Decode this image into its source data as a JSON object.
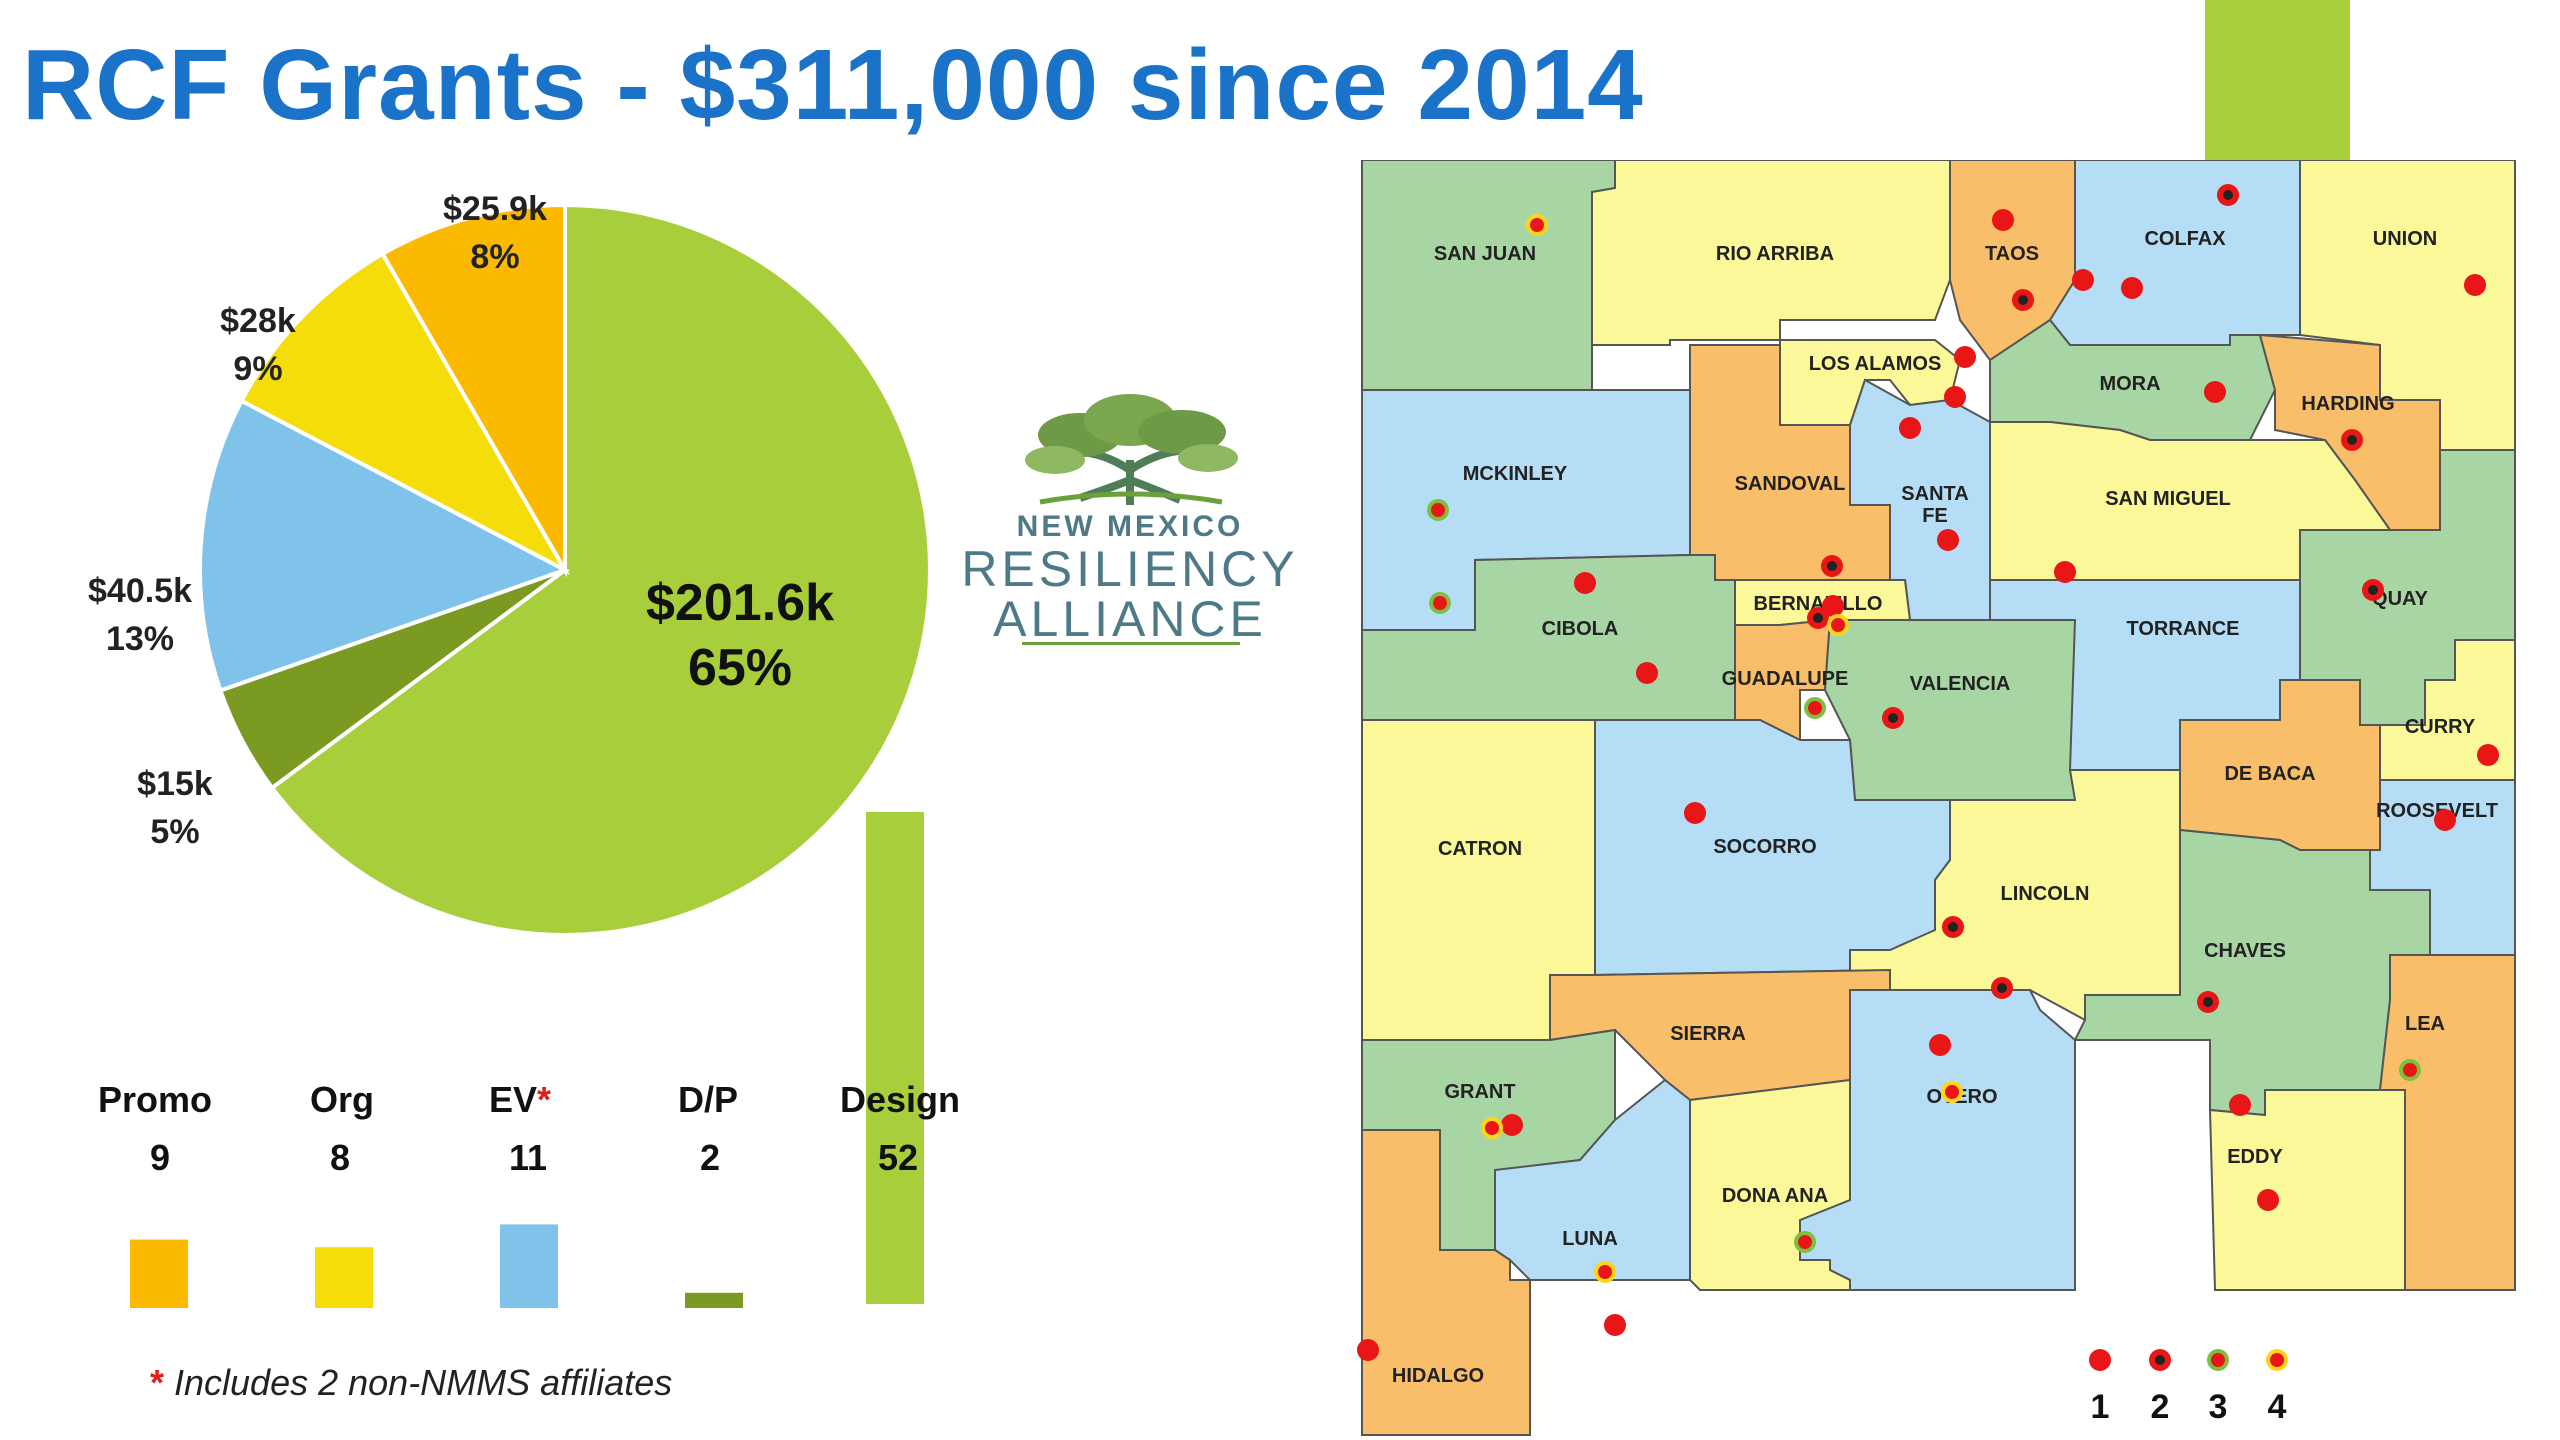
{
  "title": "RCF Grants - $311,000 since 2014",
  "colors": {
    "promo": "#fbb900",
    "org": "#f5dd0a",
    "ev": "#7fc3ea",
    "dp": "#7a9a22",
    "design": "#a8cf3b",
    "map_green": "#a7d6a4",
    "map_yellow": "#fbf89a",
    "map_orange": "#f9be69",
    "map_blue": "#b5def6",
    "dot_red": "#e81616",
    "dot_ring_yellow": "#ffd51a",
    "dot_ring_green": "#7fbf3f"
  },
  "chart_data": {
    "type": "pie",
    "slices": [
      {
        "value": "$201.6k",
        "pct": "65%",
        "amount": 201.6
      },
      {
        "value": "$15k",
        "pct": "5%",
        "amount": 15
      },
      {
        "value": "$40.5k",
        "pct": "13%",
        "amount": 40.5
      },
      {
        "value": "$28k",
        "pct": "9%",
        "amount": 28
      },
      {
        "value": "$25.9k",
        "pct": "8%",
        "amount": 25.9
      }
    ]
  },
  "bars": {
    "items": [
      {
        "label": "Promo",
        "count": "9",
        "n": 9
      },
      {
        "label": "Org",
        "count": "8",
        "n": 8
      },
      {
        "label": "EV",
        "count": "11",
        "n": 11
      },
      {
        "label": "D/P",
        "count": "2",
        "n": 2
      },
      {
        "label": "Design",
        "count": "52",
        "n": 52
      }
    ],
    "ev_marker": "*"
  },
  "footnote": {
    "star": "*",
    "text": " Includes 2 non-NMMS affiliates"
  },
  "logo": {
    "line1": "NEW MEXICO",
    "line2": "RESILIENCY",
    "line3": "ALLIANCE",
    "icon": "tree-icon"
  },
  "map": {
    "counties": [
      "SAN JUAN",
      "RIO ARRIBA",
      "TAOS",
      "COLFAX",
      "UNION",
      "LOS ALAMOS",
      "MORA",
      "HARDING",
      "MCKINLEY",
      "SANDOVAL",
      "SANTA",
      "FE",
      "SAN MIGUEL",
      "QUAY",
      "CIBOLA",
      "BERNALILLO",
      "GUADALUPE",
      "VALENCIA",
      "TORRANCE",
      "CURRY",
      "DE BACA",
      "ROOSEVELT",
      "CATRON",
      "SOCORRO",
      "LINCOLN",
      "CHAVES",
      "SIERRA",
      "GRANT",
      "OTERO",
      "LEA",
      "EDDY",
      "DONA ANA",
      "LUNA",
      "HIDALGO"
    ],
    "legend": [
      "1",
      "2",
      "3",
      "4"
    ]
  }
}
